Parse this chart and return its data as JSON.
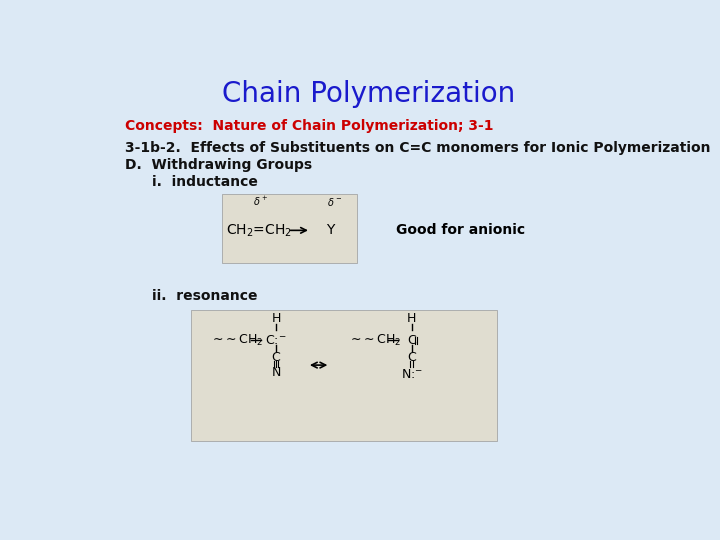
{
  "background_color": "#dce9f5",
  "title": "Chain Polymerization",
  "title_color": "#1a1acc",
  "title_fontsize": 20,
  "subtitle_color": "#cc0000",
  "subtitle_fontsize": 10,
  "subtitle": "Concepts:  Nature of Chain Polymerization; 3-1",
  "line1": "3-1b-2.  Effects of Substituents on C=C monomers for Ionic Polymerization",
  "line1_fontsize": 10,
  "line1_color": "#111111",
  "line2": "D.  Withdrawing Groups",
  "line2_fontsize": 10,
  "line2_color": "#111111",
  "line3": "i.  inductance",
  "line3_fontsize": 10,
  "line3_color": "#111111",
  "line4": "ii.  resonance",
  "line4_fontsize": 10,
  "line4_color": "#111111",
  "good_for_anionic": "Good for anionic",
  "good_fontsize": 10,
  "box1_color": "#e0ddd0",
  "box2_color": "#e0ddd0"
}
